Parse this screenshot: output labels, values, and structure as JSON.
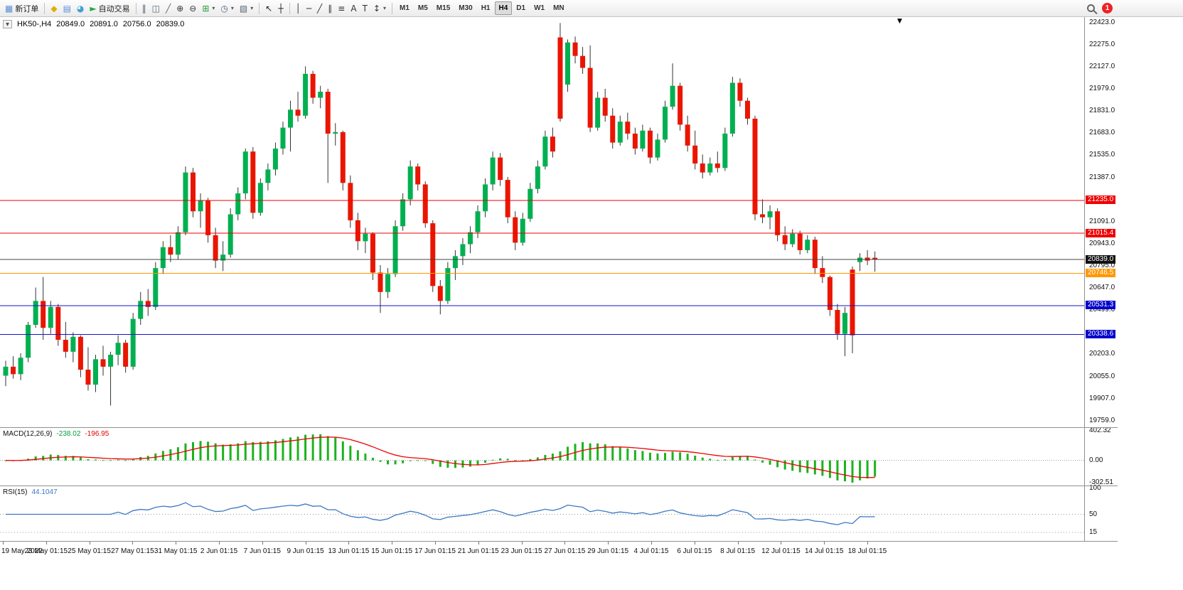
{
  "toolbar": {
    "items": [
      {
        "name": "new-order-button",
        "glyph": "▦",
        "color": "#5b8dd9",
        "label": "新订单"
      },
      {
        "name": "sep"
      },
      {
        "name": "metaeditor-button",
        "glyph": "◆",
        "color": "#e0b000"
      },
      {
        "name": "market-watch-button",
        "glyph": "▤",
        "color": "#5b8dd9"
      },
      {
        "name": "navigator-button",
        "glyph": "◕",
        "color": "#44a0d0"
      },
      {
        "name": "autotrading-button",
        "glyph": "►",
        "color": "#28a745",
        "label": "自动交易"
      },
      {
        "name": "sep"
      },
      {
        "name": "chart-bars-button",
        "glyph": "‖",
        "color": "#556677"
      },
      {
        "name": "chart-candles-button",
        "glyph": "◫",
        "color": "#556677"
      },
      {
        "name": "chart-line-button",
        "glyph": "╱",
        "color": "#556677"
      },
      {
        "name": "zoom-in-button",
        "glyph": "⊕",
        "color": "#333333"
      },
      {
        "name": "zoom-out-button",
        "glyph": "⊖",
        "color": "#333333"
      },
      {
        "name": "indicators-button",
        "glyph": "⊞",
        "color": "#2a9d3a",
        "dropdown": true
      },
      {
        "name": "periods-button",
        "glyph": "◷",
        "color": "#556677",
        "dropdown": true
      },
      {
        "name": "templates-button",
        "glyph": "▧",
        "color": "#556677",
        "dropdown": true
      },
      {
        "name": "sep"
      },
      {
        "name": "cursor-button",
        "glyph": "↖",
        "color": "#222222"
      },
      {
        "name": "crosshair-button",
        "glyph": "┼",
        "color": "#222222"
      },
      {
        "name": "sep"
      },
      {
        "name": "vline-button",
        "glyph": "│",
        "color": "#333333"
      },
      {
        "name": "hline-button",
        "glyph": "─",
        "color": "#333333"
      },
      {
        "name": "trendline-button",
        "glyph": "╱",
        "color": "#333333"
      },
      {
        "name": "channel-button",
        "glyph": "∥",
        "color": "#333333"
      },
      {
        "name": "fibonacci-button",
        "glyph": "≡",
        "color": "#333333"
      },
      {
        "name": "text-button",
        "glyph": "A",
        "color": "#333333"
      },
      {
        "name": "label-button",
        "glyph": "T",
        "color": "#333333"
      },
      {
        "name": "arrows-button",
        "glyph": "↕",
        "color": "#333333",
        "dropdown": true
      },
      {
        "name": "sep"
      }
    ],
    "timeframes": [
      "M1",
      "M5",
      "M15",
      "M30",
      "H1",
      "H4",
      "D1",
      "W1",
      "MN"
    ],
    "active_timeframe": "H4",
    "notification_count": "1"
  },
  "chart": {
    "header": {
      "collapse_glyph": "▼",
      "symbol": "HK50-,H4",
      "open": "20849.0",
      "high": "20891.0",
      "low": "20756.0",
      "close": "20839.0"
    },
    "shift_marker": "▼"
  },
  "macd_panel": {
    "label": "MACD(12,26,9)",
    "value_main": "-238.02",
    "value_signal": "-196.95",
    "axis": [
      "402.32",
      "0.00",
      "-302.51"
    ]
  },
  "rsi_panel": {
    "label": "RSI(15)",
    "value": "44.1047",
    "axis": [
      "100",
      "50",
      "15"
    ]
  },
  "chart_data": {
    "type": "candlestick",
    "symbol": "HK50-",
    "timeframe": "H4",
    "title": "HK50-,H4 20849.0 20891.0 20756.0 20839.0",
    "y_range": [
      19715,
      22460
    ],
    "price_axis_ticks": [
      22423,
      22275,
      22127,
      21979,
      21831,
      21683,
      21535,
      21387,
      21091,
      20943,
      20795,
      20647,
      20499,
      20203,
      20055,
      19907,
      19759
    ],
    "hlines": [
      {
        "price": 21235.0,
        "label": "21235.0",
        "color": "#ee0000",
        "label_bg": "#ee0000"
      },
      {
        "price": 21015.4,
        "label": "21015.4",
        "color": "#ee0000",
        "label_bg": "#ee0000"
      },
      {
        "price": 20839.0,
        "label": "20839.0",
        "color": "#444444",
        "label_bg": "#111111"
      },
      {
        "price": 20746.5,
        "label": "20746.5",
        "color": "#ff9800",
        "label_bg": "#ff9800"
      },
      {
        "price": 20531.3,
        "label": "20531.3",
        "color": "#1414cc",
        "label_bg": "#0000cc"
      },
      {
        "price": 20338.6,
        "label": "20338.6",
        "color": "#1414cc",
        "label_bg": "#0000cc"
      }
    ],
    "time_labels": [
      "19 May 2022",
      "23 May 01:15",
      "25 May 01:15",
      "27 May 01:15",
      "31 May 01:15",
      "2 Jun 01:15",
      "7 Jun 01:15",
      "9 Jun 01:15",
      "13 Jun 01:15",
      "15 Jun 01:15",
      "17 Jun 01:15",
      "21 Jun 01:15",
      "23 Jun 01:15",
      "27 Jun 01:15",
      "29 Jun 01:15",
      "4 Jul 01:15",
      "6 Jul 01:15",
      "8 Jul 01:15",
      "12 Jul 01:15",
      "14 Jul 01:15",
      "18 Jul 01:15"
    ],
    "ohlc": [
      [
        20060,
        20160,
        19990,
        20120
      ],
      [
        20120,
        20190,
        20040,
        20070
      ],
      [
        20070,
        20210,
        20030,
        20180
      ],
      [
        20180,
        20420,
        20150,
        20400
      ],
      [
        20400,
        20650,
        20380,
        20560
      ],
      [
        20560,
        20720,
        20300,
        20380
      ],
      [
        20380,
        20560,
        20340,
        20520
      ],
      [
        20520,
        20540,
        20260,
        20300
      ],
      [
        20300,
        20420,
        20180,
        20220
      ],
      [
        20220,
        20350,
        20150,
        20320
      ],
      [
        20320,
        20330,
        20050,
        20100
      ],
      [
        20100,
        20250,
        19960,
        20000
      ],
      [
        20000,
        20200,
        19950,
        20170
      ],
      [
        20170,
        20260,
        20060,
        20120
      ],
      [
        20120,
        20220,
        19860,
        20200
      ],
      [
        20200,
        20330,
        20130,
        20280
      ],
      [
        20280,
        20300,
        20080,
        20120
      ],
      [
        20120,
        20480,
        20100,
        20440
      ],
      [
        20440,
        20620,
        20400,
        20560
      ],
      [
        20560,
        20640,
        20460,
        20520
      ],
      [
        20520,
        20820,
        20500,
        20780
      ],
      [
        20780,
        20960,
        20740,
        20920
      ],
      [
        20920,
        21000,
        20820,
        20870
      ],
      [
        20870,
        21060,
        20840,
        21020
      ],
      [
        21020,
        21460,
        21000,
        21420
      ],
      [
        21420,
        21450,
        21120,
        21160
      ],
      [
        21160,
        21280,
        21050,
        21230
      ],
      [
        21230,
        21250,
        20950,
        21000
      ],
      [
        21000,
        21050,
        20780,
        20830
      ],
      [
        20830,
        20960,
        20760,
        20870
      ],
      [
        20870,
        21180,
        20850,
        21140
      ],
      [
        21140,
        21320,
        21100,
        21280
      ],
      [
        21280,
        21580,
        21240,
        21560
      ],
      [
        21560,
        21590,
        21110,
        21150
      ],
      [
        21150,
        21380,
        21130,
        21350
      ],
      [
        21350,
        21480,
        21300,
        21440
      ],
      [
        21440,
        21620,
        21400,
        21580
      ],
      [
        21580,
        21760,
        21540,
        21720
      ],
      [
        21720,
        21900,
        21560,
        21840
      ],
      [
        21840,
        21960,
        21760,
        21800
      ],
      [
        21800,
        22130,
        21780,
        22080
      ],
      [
        22080,
        22100,
        21880,
        21920
      ],
      [
        21920,
        22000,
        21850,
        21960
      ],
      [
        21960,
        21980,
        21350,
        21680
      ],
      [
        21680,
        21750,
        21600,
        21690
      ],
      [
        21690,
        21700,
        21300,
        21350
      ],
      [
        21350,
        21400,
        21050,
        21100
      ],
      [
        21100,
        21150,
        20900,
        20960
      ],
      [
        20960,
        21050,
        20880,
        21010
      ],
      [
        21010,
        21020,
        20700,
        20750
      ],
      [
        20750,
        20800,
        20480,
        20620
      ],
      [
        20620,
        20780,
        20580,
        20740
      ],
      [
        20740,
        21100,
        20720,
        21060
      ],
      [
        21060,
        21280,
        21030,
        21240
      ],
      [
        21240,
        21500,
        21200,
        21460
      ],
      [
        21460,
        21480,
        21300,
        21340
      ],
      [
        21340,
        21360,
        21050,
        21080
      ],
      [
        21080,
        21100,
        20620,
        20660
      ],
      [
        20660,
        20700,
        20470,
        20560
      ],
      [
        20560,
        20820,
        20540,
        20780
      ],
      [
        20780,
        20900,
        20700,
        20860
      ],
      [
        20860,
        20980,
        20800,
        20940
      ],
      [
        20940,
        21060,
        20880,
        21020
      ],
      [
        21020,
        21200,
        20980,
        21160
      ],
      [
        21160,
        21380,
        21120,
        21340
      ],
      [
        21340,
        21560,
        21300,
        21520
      ],
      [
        21520,
        21550,
        21330,
        21370
      ],
      [
        21370,
        21390,
        21080,
        21120
      ],
      [
        21120,
        21160,
        20900,
        20950
      ],
      [
        20950,
        21150,
        20930,
        21110
      ],
      [
        21110,
        21350,
        21090,
        21310
      ],
      [
        21310,
        21500,
        21280,
        21460
      ],
      [
        21460,
        21700,
        21440,
        21660
      ],
      [
        21660,
        21720,
        21520,
        21560
      ],
      [
        22324,
        22420,
        21760,
        21780
      ],
      [
        22008,
        22310,
        21960,
        22290
      ],
      [
        22290,
        22330,
        22150,
        22200
      ],
      [
        22200,
        22260,
        22080,
        22120
      ],
      [
        22120,
        22270,
        21690,
        21720
      ],
      [
        21720,
        21960,
        21700,
        21920
      ],
      [
        21920,
        21980,
        21760,
        21800
      ],
      [
        21800,
        21850,
        21580,
        21620
      ],
      [
        21620,
        21800,
        21600,
        21760
      ],
      [
        21760,
        21820,
        21640,
        21680
      ],
      [
        21680,
        21720,
        21540,
        21580
      ],
      [
        21580,
        21740,
        21560,
        21700
      ],
      [
        21700,
        21720,
        21480,
        21520
      ],
      [
        21520,
        21680,
        21500,
        21640
      ],
      [
        21640,
        21900,
        21620,
        21860
      ],
      [
        21860,
        22150,
        21840,
        22000
      ],
      [
        22000,
        22020,
        21700,
        21740
      ],
      [
        21740,
        21800,
        21560,
        21600
      ],
      [
        21600,
        21700,
        21440,
        21480
      ],
      [
        21480,
        21540,
        21380,
        21420
      ],
      [
        21420,
        21520,
        21400,
        21480
      ],
      [
        21480,
        21560,
        21420,
        21450
      ],
      [
        21450,
        21720,
        21430,
        21680
      ],
      [
        21680,
        22060,
        21660,
        22020
      ],
      [
        22020,
        22050,
        21860,
        21900
      ],
      [
        21900,
        21920,
        21740,
        21780
      ],
      [
        21780,
        21800,
        21100,
        21140
      ],
      [
        21140,
        21240,
        21080,
        21120
      ],
      [
        21120,
        21200,
        21040,
        21160
      ],
      [
        21160,
        21180,
        20960,
        21000
      ],
      [
        21000,
        21060,
        20900,
        20940
      ],
      [
        20940,
        21040,
        20920,
        21010
      ],
      [
        21010,
        21030,
        20870,
        20900
      ],
      [
        20900,
        21000,
        20880,
        20970
      ],
      [
        20970,
        20990,
        20740,
        20780
      ],
      [
        20780,
        20860,
        20680,
        20720
      ],
      [
        20720,
        20730,
        20460,
        20500
      ],
      [
        20500,
        20540,
        20300,
        20340
      ],
      [
        20340,
        20520,
        20190,
        20480
      ],
      [
        20770,
        20790,
        20210,
        20330
      ],
      [
        20820,
        20880,
        20760,
        20850
      ],
      [
        20850,
        20900,
        20800,
        20830
      ],
      [
        20849,
        20891,
        20756,
        20839
      ]
    ],
    "indicators": [
      {
        "type": "MACD",
        "fast": 12,
        "slow": 26,
        "signal": 9,
        "last_main": -238.02,
        "last_signal": -196.95,
        "axis_max": 402.32,
        "axis_min": -302.51
      },
      {
        "type": "RSI",
        "period": 15,
        "last": 44.1047,
        "levels": [
          50,
          15
        ]
      }
    ],
    "colors": {
      "bull": "#00b050",
      "bear": "#ea1500",
      "wick": "#333333",
      "macd_hist": "#1db21d",
      "macd_signal": "#ee0000",
      "rsi_line": "#3b78c3",
      "bg": "#ffffff"
    }
  }
}
